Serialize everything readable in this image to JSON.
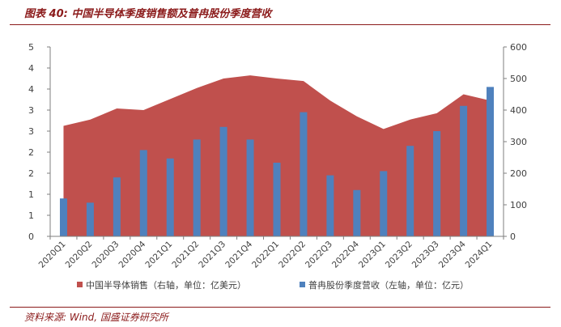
{
  "figure": {
    "title": "图表 40:  中国半导体季度销售额及普冉股份季度营收",
    "source": "资料来源:  Wind,  国盛证券研究所"
  },
  "chart_data": {
    "type": "bar",
    "categories": [
      "2020Q1",
      "2020Q2",
      "2020Q3",
      "2020Q4",
      "2021Q1",
      "2021Q2",
      "2021Q3",
      "2021Q4",
      "2022Q1",
      "2022Q2",
      "2022Q3",
      "2022Q4",
      "2023Q1",
      "2023Q2",
      "2023Q3",
      "2023Q4",
      "2024Q1"
    ],
    "series": [
      {
        "name": "中国半导体销售（右轴，单位：亿美元）",
        "type": "area",
        "axis": "right",
        "color": "#C0504D",
        "values": [
          350,
          370,
          405,
          400,
          435,
          470,
          500,
          510,
          500,
          492,
          430,
          380,
          340,
          370,
          390,
          450,
          430
        ]
      },
      {
        "name": "普冉股份季度营收（左轴，单位：亿元）",
        "type": "bar",
        "axis": "left",
        "color": "#4F81BD",
        "values": [
          0.9,
          0.8,
          1.4,
          2.05,
          1.85,
          2.3,
          2.6,
          2.3,
          1.75,
          2.95,
          1.45,
          1.1,
          1.55,
          2.15,
          2.5,
          3.1,
          3.55
        ]
      }
    ],
    "left_axis": {
      "ticks": [
        "0",
        "1",
        "1",
        "2",
        "2",
        "3",
        "3",
        "4",
        "4",
        "5"
      ],
      "ylim": [
        0,
        4.5
      ]
    },
    "right_axis": {
      "ticks": [
        "0",
        "100",
        "200",
        "300",
        "400",
        "500",
        "600"
      ],
      "ylim": [
        0,
        600
      ]
    },
    "legend_position": "bottom",
    "grid": false
  }
}
